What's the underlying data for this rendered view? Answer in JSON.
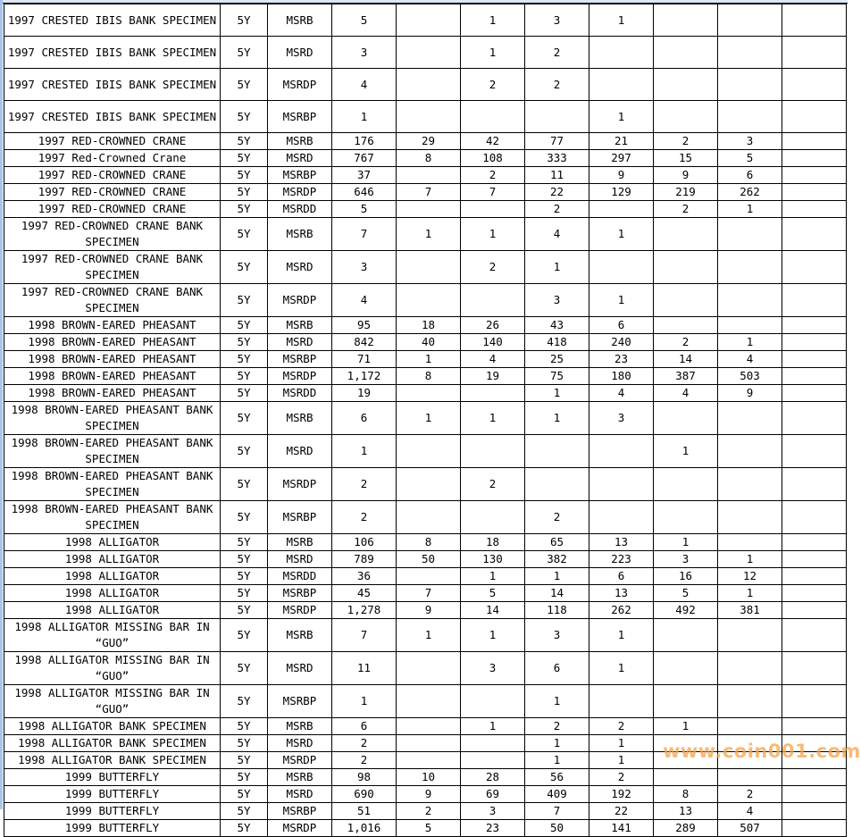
{
  "table": {
    "rows": [
      [
        "1997 CRESTED IBIS BANK SPECIMEN",
        "5Y",
        "MSRB",
        "5",
        "",
        "1",
        "3",
        "1",
        "",
        "",
        ""
      ],
      [
        "1997 CRESTED IBIS BANK SPECIMEN",
        "5Y",
        "MSRD",
        "3",
        "",
        "1",
        "2",
        "",
        "",
        "",
        ""
      ],
      [
        "1997 CRESTED IBIS BANK SPECIMEN",
        "5Y",
        "MSRDP",
        "4",
        "",
        "2",
        "2",
        "",
        "",
        "",
        ""
      ],
      [
        "1997 CRESTED IBIS BANK SPECIMEN",
        "5Y",
        "MSRBP",
        "1",
        "",
        "",
        "",
        "1",
        "",
        "",
        ""
      ],
      [
        "1997 RED-CROWNED CRANE",
        "5Y",
        "MSRB",
        "176",
        "29",
        "42",
        "77",
        "21",
        "2",
        "3",
        ""
      ],
      [
        "1997 Red-Crowned Crane",
        "5Y",
        "MSRD",
        "767",
        "8",
        "108",
        "333",
        "297",
        "15",
        "5",
        ""
      ],
      [
        "1997 RED-CROWNED CRANE",
        "5Y",
        "MSRBP",
        "37",
        "",
        "2",
        "11",
        "9",
        "9",
        "6",
        ""
      ],
      [
        "1997 RED-CROWNED CRANE",
        "5Y",
        "MSRDP",
        "646",
        "7",
        "7",
        "22",
        "129",
        "219",
        "262",
        ""
      ],
      [
        "1997 RED-CROWNED CRANE",
        "5Y",
        "MSRDD",
        "5",
        "",
        "",
        "2",
        "",
        "2",
        "1",
        ""
      ],
      [
        "1997 RED-CROWNED CRANE BANK SPECIMEN",
        "5Y",
        "MSRB",
        "7",
        "1",
        "1",
        "4",
        "1",
        "",
        "",
        ""
      ],
      [
        "1997 RED-CROWNED CRANE BANK SPECIMEN",
        "5Y",
        "MSRD",
        "3",
        "",
        "2",
        "1",
        "",
        "",
        "",
        ""
      ],
      [
        "1997 RED-CROWNED CRANE BANK SPECIMEN",
        "5Y",
        "MSRDP",
        "4",
        "",
        "",
        "3",
        "1",
        "",
        "",
        ""
      ],
      [
        "1998 BROWN-EARED PHEASANT",
        "5Y",
        "MSRB",
        "95",
        "18",
        "26",
        "43",
        "6",
        "",
        "",
        ""
      ],
      [
        "1998 BROWN-EARED PHEASANT",
        "5Y",
        "MSRD",
        "842",
        "40",
        "140",
        "418",
        "240",
        "2",
        "1",
        ""
      ],
      [
        "1998 BROWN-EARED PHEASANT",
        "5Y",
        "MSRBP",
        "71",
        "1",
        "4",
        "25",
        "23",
        "14",
        "4",
        ""
      ],
      [
        "1998 BROWN-EARED PHEASANT",
        "5Y",
        "MSRDP",
        "1,172",
        "8",
        "19",
        "75",
        "180",
        "387",
        "503",
        ""
      ],
      [
        "1998 BROWN-EARED PHEASANT",
        "5Y",
        "MSRDD",
        "19",
        "",
        "",
        "1",
        "4",
        "4",
        "9",
        ""
      ],
      [
        "1998 BROWN-EARED PHEASANT BANK SPECIMEN",
        "5Y",
        "MSRB",
        "6",
        "1",
        "1",
        "1",
        "3",
        "",
        "",
        ""
      ],
      [
        "1998 BROWN-EARED PHEASANT BANK SPECIMEN",
        "5Y",
        "MSRD",
        "1",
        "",
        "",
        "",
        "",
        "1",
        "",
        ""
      ],
      [
        "1998 BROWN-EARED PHEASANT BANK SPECIMEN",
        "5Y",
        "MSRDP",
        "2",
        "",
        "2",
        "",
        "",
        "",
        "",
        ""
      ],
      [
        "1998 BROWN-EARED PHEASANT BANK SPECIMEN",
        "5Y",
        "MSRBP",
        "2",
        "",
        "",
        "2",
        "",
        "",
        "",
        ""
      ],
      [
        "1998 ALLIGATOR",
        "5Y",
        "MSRB",
        "106",
        "8",
        "18",
        "65",
        "13",
        "1",
        "",
        ""
      ],
      [
        "1998 ALLIGATOR",
        "5Y",
        "MSRD",
        "789",
        "50",
        "130",
        "382",
        "223",
        "3",
        "1",
        ""
      ],
      [
        "1998 ALLIGATOR",
        "5Y",
        "MSRDD",
        "36",
        "",
        "1",
        "1",
        "6",
        "16",
        "12",
        ""
      ],
      [
        "1998 ALLIGATOR",
        "5Y",
        "MSRBP",
        "45",
        "7",
        "5",
        "14",
        "13",
        "5",
        "1",
        ""
      ],
      [
        "1998 ALLIGATOR",
        "5Y",
        "MSRDP",
        "1,278",
        "9",
        "14",
        "118",
        "262",
        "492",
        "381",
        ""
      ],
      [
        "1998 ALLIGATOR MISSING BAR IN “GUO”",
        "5Y",
        "MSRB",
        "7",
        "1",
        "1",
        "3",
        "1",
        "",
        "",
        ""
      ],
      [
        "1998 ALLIGATOR MISSING BAR IN “GUO”",
        "5Y",
        "MSRD",
        "11",
        "",
        "3",
        "6",
        "1",
        "",
        "",
        ""
      ],
      [
        "1998 ALLIGATOR MISSING BAR IN “GUO”",
        "5Y",
        "MSRBP",
        "1",
        "",
        "",
        "1",
        "",
        "",
        "",
        ""
      ],
      [
        "1998 ALLIGATOR BANK SPECIMEN",
        "5Y",
        "MSRB",
        "6",
        "",
        "1",
        "2",
        "2",
        "1",
        "",
        ""
      ],
      [
        "1998 ALLIGATOR BANK SPECIMEN",
        "5Y",
        "MSRD",
        "2",
        "",
        "",
        "1",
        "1",
        "",
        "",
        ""
      ],
      [
        "1998 ALLIGATOR BANK SPECIMEN",
        "5Y",
        "MSRDP",
        "2",
        "",
        "",
        "1",
        "1",
        "",
        "",
        ""
      ],
      [
        "1999 BUTTERFLY",
        "5Y",
        "MSRB",
        "98",
        "10",
        "28",
        "56",
        "2",
        "",
        "",
        ""
      ],
      [
        "1999 BUTTERFLY",
        "5Y",
        "MSRD",
        "690",
        "9",
        "69",
        "409",
        "192",
        "8",
        "2",
        ""
      ],
      [
        "1999 BUTTERFLY",
        "5Y",
        "MSRBP",
        "51",
        "2",
        "3",
        "7",
        "22",
        "13",
        "4",
        ""
      ],
      [
        "1999 BUTTERFLY",
        "5Y",
        "MSRDP",
        "1,016",
        "5",
        "23",
        "50",
        "141",
        "289",
        "507",
        ""
      ]
    ]
  },
  "watermark": "www.coin001.com",
  "colors": {
    "watermark": "#f6a44a",
    "window_edge": "#a9c4e8"
  }
}
